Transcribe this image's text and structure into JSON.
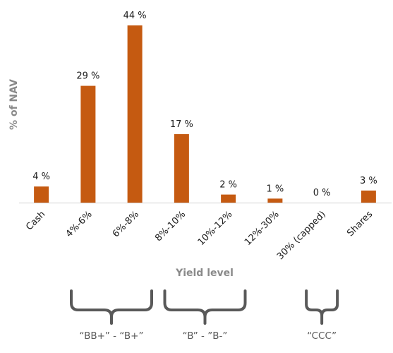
{
  "chart_data": {
    "type": "bar",
    "categories": [
      "Cash",
      "4%-6%",
      "6%-8%",
      "8%-10%",
      "10%-12%",
      "12%-30%",
      "30% (capped)",
      "Shares"
    ],
    "values": [
      4,
      29,
      44,
      17,
      2,
      1,
      0,
      3
    ],
    "data_labels": [
      "4 %",
      "29 %",
      "44 %",
      "17 %",
      "2 %",
      "1 %",
      "0 %",
      "3 %"
    ],
    "title": "",
    "xlabel": "Yield level",
    "ylabel": "% of NAV",
    "ylim": [
      0,
      50
    ],
    "grid": false,
    "legend": "none",
    "bar_color": "#c55a11",
    "groups": [
      {
        "label": "“BB+” - “B+”",
        "from_category": "4%-6%",
        "to_category": "6%-8%"
      },
      {
        "label": "“B” - ”B-”",
        "from_category": "8%-10%",
        "to_category": "10%-12%"
      },
      {
        "label": "“CCC”",
        "from_category": "30% (capped)",
        "to_category": "30% (capped)"
      }
    ]
  }
}
